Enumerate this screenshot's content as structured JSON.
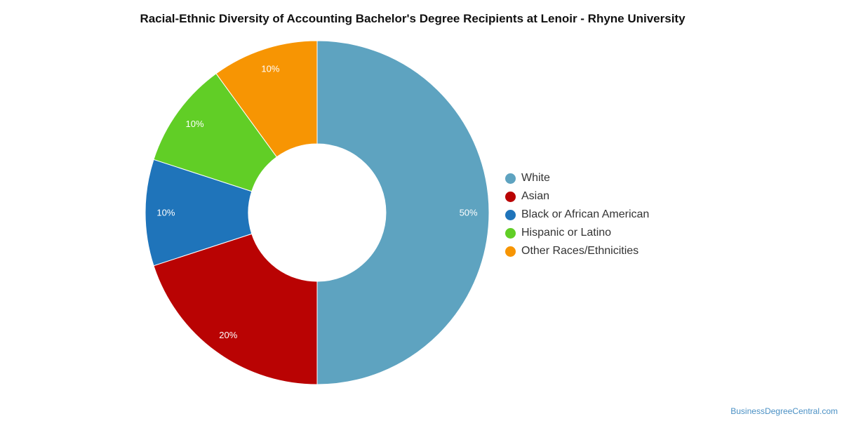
{
  "chart_data": {
    "type": "pie",
    "variant": "donut",
    "title": "Racial-Ethnic Diversity of Accounting Bachelor's Degree Recipients at Lenoir - Rhyne University",
    "unit": "%",
    "legend_position": "right",
    "slices": [
      {
        "name": "White",
        "value": 50,
        "label": "50%",
        "color": "#5ea3c0"
      },
      {
        "name": "Asian",
        "value": 20,
        "label": "20%",
        "color": "#b90303"
      },
      {
        "name": "Black or African American",
        "value": 10,
        "label": "10%",
        "color": "#1f74ba"
      },
      {
        "name": "Hispanic or Latino",
        "value": 10,
        "label": "10%",
        "color": "#61ce26"
      },
      {
        "name": "Other Races/Ethnicities",
        "value": 10,
        "label": "10%",
        "color": "#f79503"
      }
    ]
  },
  "credit": "BusinessDegreeCentral.com"
}
